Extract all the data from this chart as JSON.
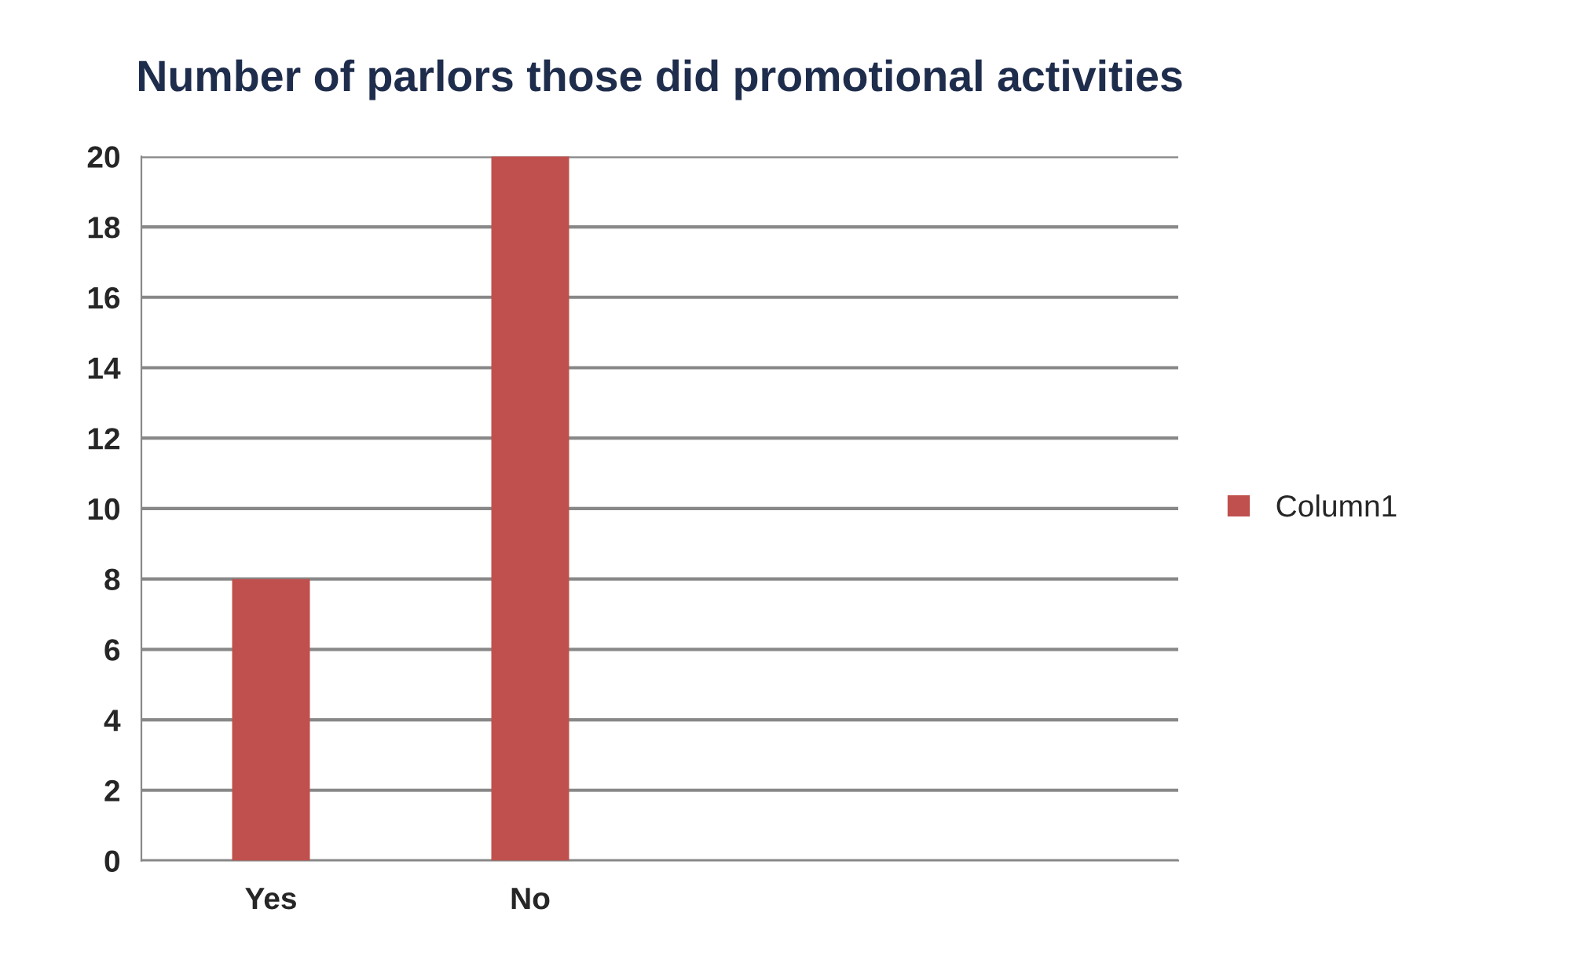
{
  "chart_data": {
    "type": "bar",
    "title": "Number of parlors those did promotional activities",
    "categories": [
      "Yes",
      "No",
      null,
      null
    ],
    "series": [
      {
        "name": "Column1",
        "color": "#c0504d",
        "values": [
          8,
          20,
          null,
          null
        ]
      }
    ],
    "ylim": [
      0,
      20
    ],
    "yticks": [
      0,
      2,
      4,
      6,
      8,
      10,
      12,
      14,
      16,
      18,
      20
    ],
    "grid": "y",
    "legend": "right"
  }
}
